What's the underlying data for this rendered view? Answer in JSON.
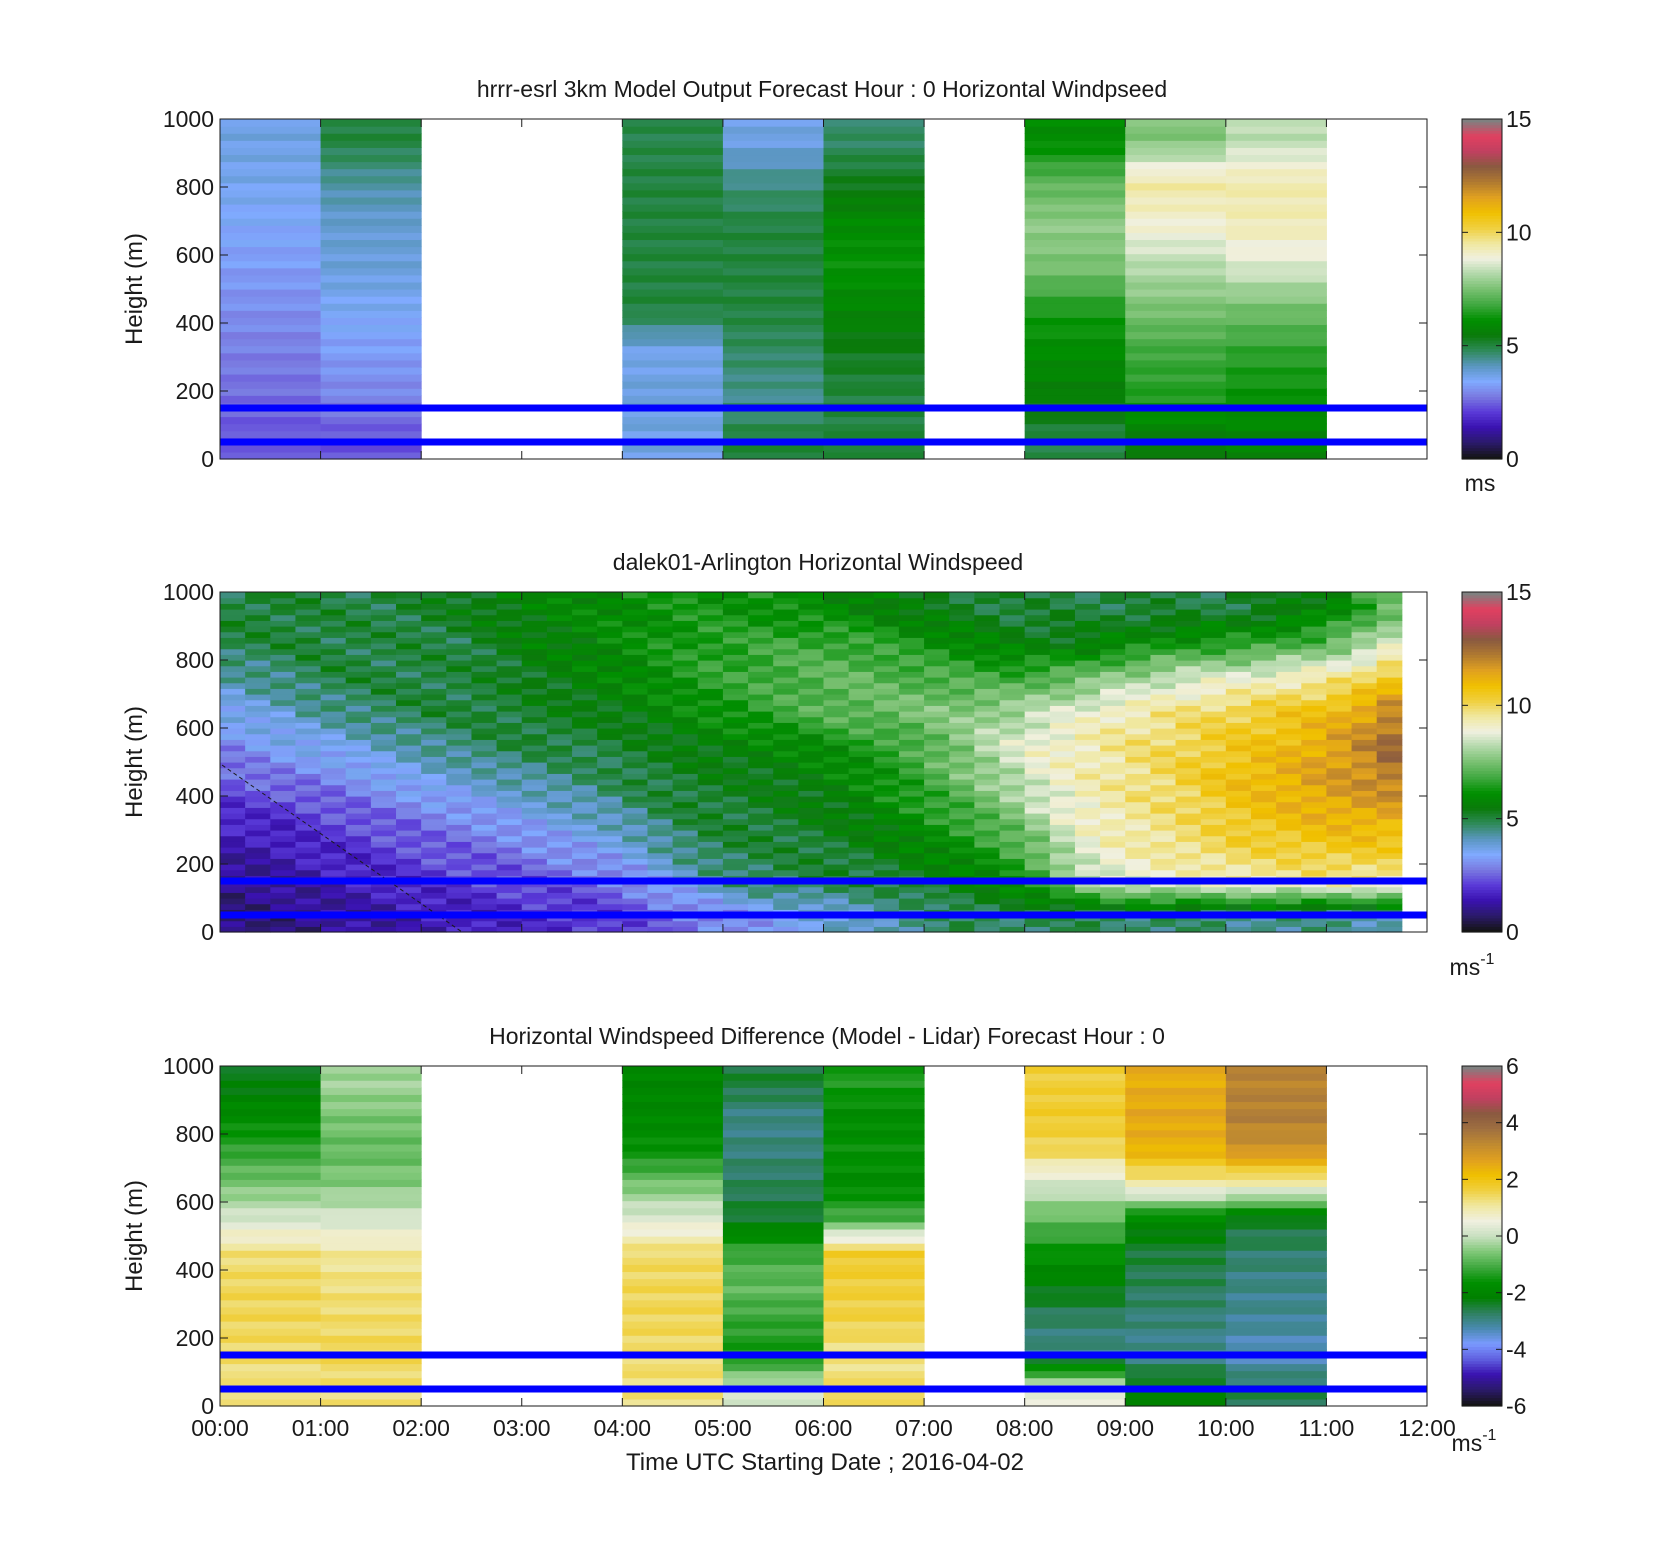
{
  "figure": {
    "xlabel": "Time UTC  Starting Date ; 2016-04-02",
    "x_ticks": [
      "00:00",
      "01:00",
      "02:00",
      "03:00",
      "04:00",
      "05:00",
      "06:00",
      "07:00",
      "08:00",
      "09:00",
      "10:00",
      "11:00",
      "12:00"
    ],
    "y_ticks": [
      "0",
      "200",
      "400",
      "600",
      "800",
      "1000"
    ],
    "ylabel": "Height (m)"
  },
  "colorscale_speed": [
    "#141414",
    "#2b1a6b",
    "#3a12b0",
    "#5a3ad8",
    "#7a7ae0",
    "#80aaff",
    "#5a96c0",
    "#2f8a5a",
    "#0a7a0a",
    "#009000",
    "#40a840",
    "#78c070",
    "#b0d8a8",
    "#f0f0e0",
    "#f0e8a0",
    "#f0d040",
    "#f0c000",
    "#e0a020",
    "#b07a30",
    "#8a5a40",
    "#c04060",
    "#e04060",
    "#808080"
  ],
  "colorscale_diff": [
    "#141414",
    "#2b1a6b",
    "#3a12b0",
    "#6060e0",
    "#7a9aff",
    "#4a8ab0",
    "#2f8060",
    "#008000",
    "#009000",
    "#40a840",
    "#80c878",
    "#c8e0c0",
    "#f0f0e0",
    "#f0e8a0",
    "#f0d040",
    "#f0c000",
    "#e0a020",
    "#c08a30",
    "#a07040",
    "#8a5a40",
    "#c04060",
    "#e04060",
    "#808080"
  ],
  "reference_lines_m": [
    50,
    150
  ],
  "reference_line_color": "#0000ff",
  "chart_data": [
    {
      "type": "heatmap",
      "title": "hrrr-esrl 3km Model Output   Forecast Hour : 0 Horizontal Windpseed",
      "ylabel": "Height (m)",
      "ylim": [
        0,
        1000
      ],
      "xlim": [
        "00:00",
        "12:00"
      ],
      "colorbar": {
        "ticks": [
          "0",
          "5",
          "10",
          "15"
        ],
        "range": [
          0,
          15
        ],
        "unit": "ms"
      },
      "columns": [
        {
          "hour": 0,
          "values": [
            2.3,
            2.6,
            2.8,
            3.0,
            3.2,
            3.4,
            3.6,
            3.7
          ]
        },
        {
          "hour": 1,
          "values": [
            2.3,
            2.9,
            3.2,
            3.5,
            3.8,
            3.9,
            4.3,
            5.0
          ]
        },
        {
          "hour": 2,
          "values": null
        },
        {
          "hour": 3,
          "values": null
        },
        {
          "hour": 4,
          "values": [
            3.7,
            3.8,
            3.6,
            5.0,
            5.0,
            5.0,
            5.0,
            4.9
          ]
        },
        {
          "hour": 5,
          "values": [
            5.0,
            4.4,
            4.7,
            5.0,
            5.0,
            5.0,
            4.5,
            3.7
          ]
        },
        {
          "hour": 6,
          "values": [
            5.0,
            5.0,
            5.3,
            5.8,
            6.2,
            6.0,
            5.3,
            4.7
          ]
        },
        {
          "hour": 7,
          "values": null
        },
        {
          "hour": 8,
          "values": [
            5.0,
            5.6,
            6.0,
            6.4,
            7.5,
            7.8,
            7.2,
            6.0
          ]
        },
        {
          "hour": 9,
          "values": [
            5.6,
            6.5,
            6.8,
            7.5,
            8.2,
            9.0,
            9.5,
            7.6
          ]
        },
        {
          "hour": 10,
          "values": [
            5.8,
            6.2,
            6.6,
            7.4,
            8.6,
            9.3,
            9.4,
            8.3
          ]
        },
        {
          "hour": 11,
          "values": null
        }
      ]
    },
    {
      "type": "heatmap",
      "title": "dalek01-Arlington  Horizontal Windspeed",
      "ylabel": "Height (m)",
      "ylim": [
        0,
        1000
      ],
      "xlim": [
        "00:00",
        "12:00"
      ],
      "colorbar": {
        "ticks": [
          "0",
          "5",
          "10",
          "15"
        ],
        "range": [
          0,
          15
        ],
        "unit": "ms",
        "unit_sup": "-1"
      },
      "profile_times_h": [
        0,
        0.25,
        0.5,
        0.75,
        1,
        1.25,
        1.5,
        1.75,
        2,
        2.25,
        2.5,
        2.75,
        3,
        3.25,
        3.5,
        3.75,
        4,
        4.25,
        4.5,
        4.75,
        5,
        5.25,
        5.5,
        5.75,
        6,
        6.25,
        6.5,
        6.75,
        7,
        7.25,
        7.5,
        7.75,
        8,
        8.25,
        8.5,
        8.75,
        9,
        9.25,
        9.5,
        9.75,
        10,
        10.25,
        10.5,
        10.75,
        11,
        11.25,
        11.5
      ],
      "heights_m": [
        50,
        150,
        250,
        350,
        450,
        550,
        650,
        750,
        850,
        950
      ],
      "columns": [
        [
          0.8,
          1.0,
          1.4,
          1.8,
          2.4,
          3.0,
          3.6,
          4.2,
          5.0,
          5.0
        ],
        [
          0.9,
          1.1,
          1.4,
          1.9,
          2.6,
          3.2,
          3.8,
          4.4,
          5.0,
          5.1
        ],
        [
          0.9,
          1.2,
          1.5,
          1.9,
          2.7,
          3.4,
          3.9,
          4.6,
          5.0,
          5.1
        ],
        [
          1.0,
          1.3,
          1.7,
          2.1,
          2.8,
          3.5,
          4.2,
          4.8,
          5.1,
          5.0
        ],
        [
          1.1,
          1.5,
          1.8,
          2.3,
          2.9,
          3.6,
          4.4,
          5.0,
          5.0,
          5.0
        ],
        [
          1.2,
          1.6,
          1.9,
          2.4,
          3.1,
          3.8,
          4.6,
          5.0,
          5.0,
          5.0
        ],
        [
          1.3,
          1.7,
          2.1,
          2.6,
          3.3,
          4.0,
          4.8,
          5.0,
          4.9,
          5.0
        ],
        [
          1.4,
          1.8,
          2.2,
          2.7,
          3.5,
          4.2,
          4.9,
          5.0,
          5.0,
          5.1
        ],
        [
          1.5,
          1.9,
          2.4,
          2.9,
          3.7,
          4.4,
          5.0,
          5.0,
          5.0,
          5.2
        ],
        [
          1.5,
          2.0,
          2.5,
          3.0,
          3.8,
          4.6,
          5.0,
          5.0,
          5.0,
          5.3
        ],
        [
          1.6,
          2.1,
          2.6,
          3.2,
          4.0,
          4.8,
          5.1,
          5.1,
          5.2,
          5.5
        ],
        [
          1.7,
          2.2,
          2.7,
          3.4,
          4.2,
          4.9,
          5.1,
          5.2,
          5.4,
          5.6
        ],
        [
          1.8,
          2.3,
          2.9,
          3.6,
          4.3,
          5.0,
          5.2,
          5.4,
          5.6,
          5.7
        ],
        [
          1.8,
          2.4,
          3.1,
          3.8,
          4.5,
          5.0,
          5.3,
          5.5,
          5.7,
          5.8
        ],
        [
          1.9,
          2.5,
          3.3,
          4.0,
          4.6,
          5.0,
          5.4,
          5.7,
          5.8,
          5.9
        ],
        [
          2.0,
          2.7,
          3.5,
          4.2,
          4.8,
          5.1,
          5.5,
          5.8,
          6.0,
          6.0
        ],
        [
          2.2,
          3.0,
          3.8,
          4.5,
          5.0,
          5.2,
          5.6,
          6.0,
          6.1,
          6.1
        ],
        [
          2.4,
          3.4,
          4.2,
          4.8,
          5.1,
          5.3,
          5.8,
          6.2,
          6.3,
          6.2
        ],
        [
          2.6,
          3.8,
          4.6,
          5.0,
          5.2,
          5.5,
          6.0,
          6.4,
          6.4,
          6.3
        ],
        [
          2.8,
          4.2,
          4.9,
          5.1,
          5.3,
          5.6,
          6.2,
          6.6,
          6.6,
          6.3
        ],
        [
          3.0,
          4.6,
          5.0,
          5.1,
          5.3,
          5.7,
          6.4,
          6.7,
          6.6,
          6.2
        ],
        [
          3.2,
          4.8,
          5.0,
          5.2,
          5.4,
          5.8,
          6.6,
          6.9,
          6.7,
          6.2
        ],
        [
          3.4,
          4.9,
          5.0,
          5.3,
          5.5,
          5.9,
          6.8,
          7.0,
          6.8,
          6.1
        ],
        [
          3.6,
          5.0,
          5.1,
          5.4,
          5.6,
          6.0,
          7.0,
          7.1,
          6.8,
          6.0
        ],
        [
          3.8,
          5.0,
          5.2,
          5.5,
          5.8,
          6.2,
          7.2,
          7.2,
          6.8,
          5.9
        ],
        [
          4.0,
          5.0,
          5.3,
          5.7,
          6.0,
          6.4,
          7.3,
          7.2,
          6.7,
          5.8
        ],
        [
          4.2,
          5.1,
          5.5,
          6.0,
          6.3,
          6.6,
          7.4,
          7.1,
          6.6,
          5.6
        ],
        [
          4.4,
          5.2,
          5.8,
          6.2,
          6.6,
          6.9,
          7.5,
          7.0,
          6.4,
          5.4
        ],
        [
          4.6,
          5.4,
          6.0,
          6.5,
          7.0,
          7.3,
          7.6,
          7.0,
          6.2,
          5.3
        ],
        [
          4.8,
          5.6,
          6.2,
          6.8,
          7.4,
          7.7,
          7.7,
          6.9,
          6.0,
          5.2
        ],
        [
          4.8,
          5.8,
          6.5,
          7.2,
          7.8,
          8.2,
          7.9,
          6.8,
          5.8,
          5.1
        ],
        [
          4.8,
          6.2,
          6.9,
          7.6,
          8.2,
          8.6,
          8.0,
          6.8,
          5.6,
          5.0
        ],
        [
          4.8,
          6.7,
          7.4,
          8.2,
          8.7,
          9.0,
          8.3,
          7.0,
          5.5,
          5.0
        ],
        [
          4.8,
          7.5,
          8.2,
          8.8,
          9.0,
          9.2,
          8.6,
          7.2,
          5.5,
          5.0
        ],
        [
          4.8,
          8.2,
          8.8,
          9.2,
          9.3,
          9.4,
          8.9,
          7.4,
          5.6,
          5.0
        ],
        [
          4.8,
          8.6,
          9.2,
          9.4,
          9.5,
          9.6,
          9.2,
          7.8,
          5.8,
          5.0
        ],
        [
          4.7,
          8.8,
          9.4,
          9.6,
          9.8,
          9.8,
          9.4,
          8.0,
          6.0,
          5.0
        ],
        [
          4.7,
          9.0,
          9.6,
          9.8,
          10.0,
          10.0,
          9.6,
          8.3,
          6.2,
          5.0
        ],
        [
          4.6,
          9.1,
          9.8,
          10.0,
          10.3,
          10.2,
          9.8,
          8.5,
          6.3,
          5.0
        ],
        [
          4.6,
          9.2,
          10.0,
          10.3,
          10.6,
          10.4,
          10.0,
          8.7,
          6.4,
          5.0
        ],
        [
          4.5,
          9.3,
          10.2,
          10.6,
          10.9,
          10.6,
          10.2,
          8.8,
          6.5,
          5.1
        ],
        [
          4.5,
          9.4,
          10.3,
          10.8,
          11.1,
          10.8,
          10.4,
          9.0,
          6.6,
          5.2
        ],
        [
          4.4,
          9.5,
          10.4,
          11.0,
          11.3,
          11.0,
          10.6,
          9.2,
          6.8,
          5.4
        ],
        [
          4.4,
          9.6,
          10.5,
          11.2,
          11.5,
          11.3,
          10.8,
          9.4,
          7.0,
          5.6
        ],
        [
          4.4,
          9.6,
          10.6,
          11.3,
          11.7,
          11.6,
          11.1,
          9.6,
          7.4,
          6.0
        ],
        [
          4.3,
          9.6,
          10.6,
          11.4,
          11.9,
          12.0,
          11.5,
          10.0,
          7.9,
          6.6
        ],
        [
          4.3,
          9.5,
          10.5,
          11.4,
          12.2,
          12.6,
          12.0,
          10.6,
          8.6,
          7.2
        ]
      ]
    },
    {
      "type": "heatmap",
      "title": "Horizontal Windspeed Difference (Model - Lidar) Forecast Hour : 0",
      "ylabel": "Height (m)",
      "ylim": [
        0,
        1000
      ],
      "xlim": [
        "00:00",
        "12:00"
      ],
      "xlabel": "Time UTC  Starting Date ; 2016-04-02",
      "colorbar": {
        "ticks": [
          "-6",
          "-4",
          "-2",
          "0",
          "2",
          "4",
          "6"
        ],
        "range": [
          -6,
          6
        ],
        "unit": "ms",
        "unit_sup": "-1"
      },
      "columns": [
        {
          "hour": 0,
          "values": [
            1.2,
            1.4,
            1.5,
            1.5,
            1.3,
            0.2,
            -0.6,
            -1.2,
            -1.8,
            -2.3
          ]
        },
        {
          "hour": 1,
          "values": [
            1.3,
            1.5,
            1.4,
            1.3,
            1.1,
            0.2,
            -0.5,
            -0.8,
            -0.6,
            -0.3
          ]
        },
        {
          "hour": 2,
          "values": null
        },
        {
          "hour": 3,
          "values": null
        },
        {
          "hour": 4,
          "values": [
            1.3,
            1.4,
            1.5,
            1.5,
            1.4,
            0.3,
            -0.6,
            -1.6,
            -1.9,
            -2.0
          ]
        },
        {
          "hour": 5,
          "values": [
            0.1,
            -1.5,
            -1.2,
            -0.8,
            -1.1,
            -2.4,
            -2.7,
            -2.9,
            -3.0,
            -2.5
          ]
        },
        {
          "hour": 6,
          "values": [
            1.4,
            1.2,
            1.6,
            1.7,
            1.8,
            -1.0,
            -1.8,
            -1.6,
            -1.8,
            -1.4
          ]
        },
        {
          "hour": 7,
          "values": null
        },
        {
          "hour": 8,
          "values": [
            0.5,
            -3.0,
            -2.8,
            -2.2,
            -1.6,
            -0.8,
            0.1,
            1.5,
            1.8,
            1.7
          ]
        },
        {
          "hour": 9,
          "values": [
            -2.0,
            -3.1,
            -2.9,
            -2.7,
            -2.5,
            -1.9,
            0.9,
            2.4,
            2.6,
            2.5
          ]
        },
        {
          "hour": 10,
          "values": [
            -2.6,
            -3.4,
            -3.1,
            -3.0,
            -2.8,
            -2.4,
            0.8,
            3.0,
            3.5,
            3.4
          ]
        },
        {
          "hour": 11,
          "values": null
        }
      ]
    }
  ],
  "panels": [
    {
      "title": "hrrr-esrl 3km Model Output   Forecast Hour : 0 Horizontal Windpseed",
      "cb_ticks": [
        "0",
        "5",
        "10",
        "15"
      ],
      "cb_unit": "ms",
      "cb_unit_sup": ""
    },
    {
      "title": "dalek01-Arlington  Horizontal Windspeed",
      "cb_ticks": [
        "0",
        "5",
        "10",
        "15"
      ],
      "cb_unit": "ms",
      "cb_unit_sup": "-1"
    },
    {
      "title": "Horizontal Windspeed Difference (Model - Lidar) Forecast Hour : 0",
      "cb_ticks": [
        "-6",
        "-4",
        "-2",
        "0",
        "2",
        "4",
        "6"
      ],
      "cb_unit": "ms",
      "cb_unit_sup": "-1"
    }
  ]
}
